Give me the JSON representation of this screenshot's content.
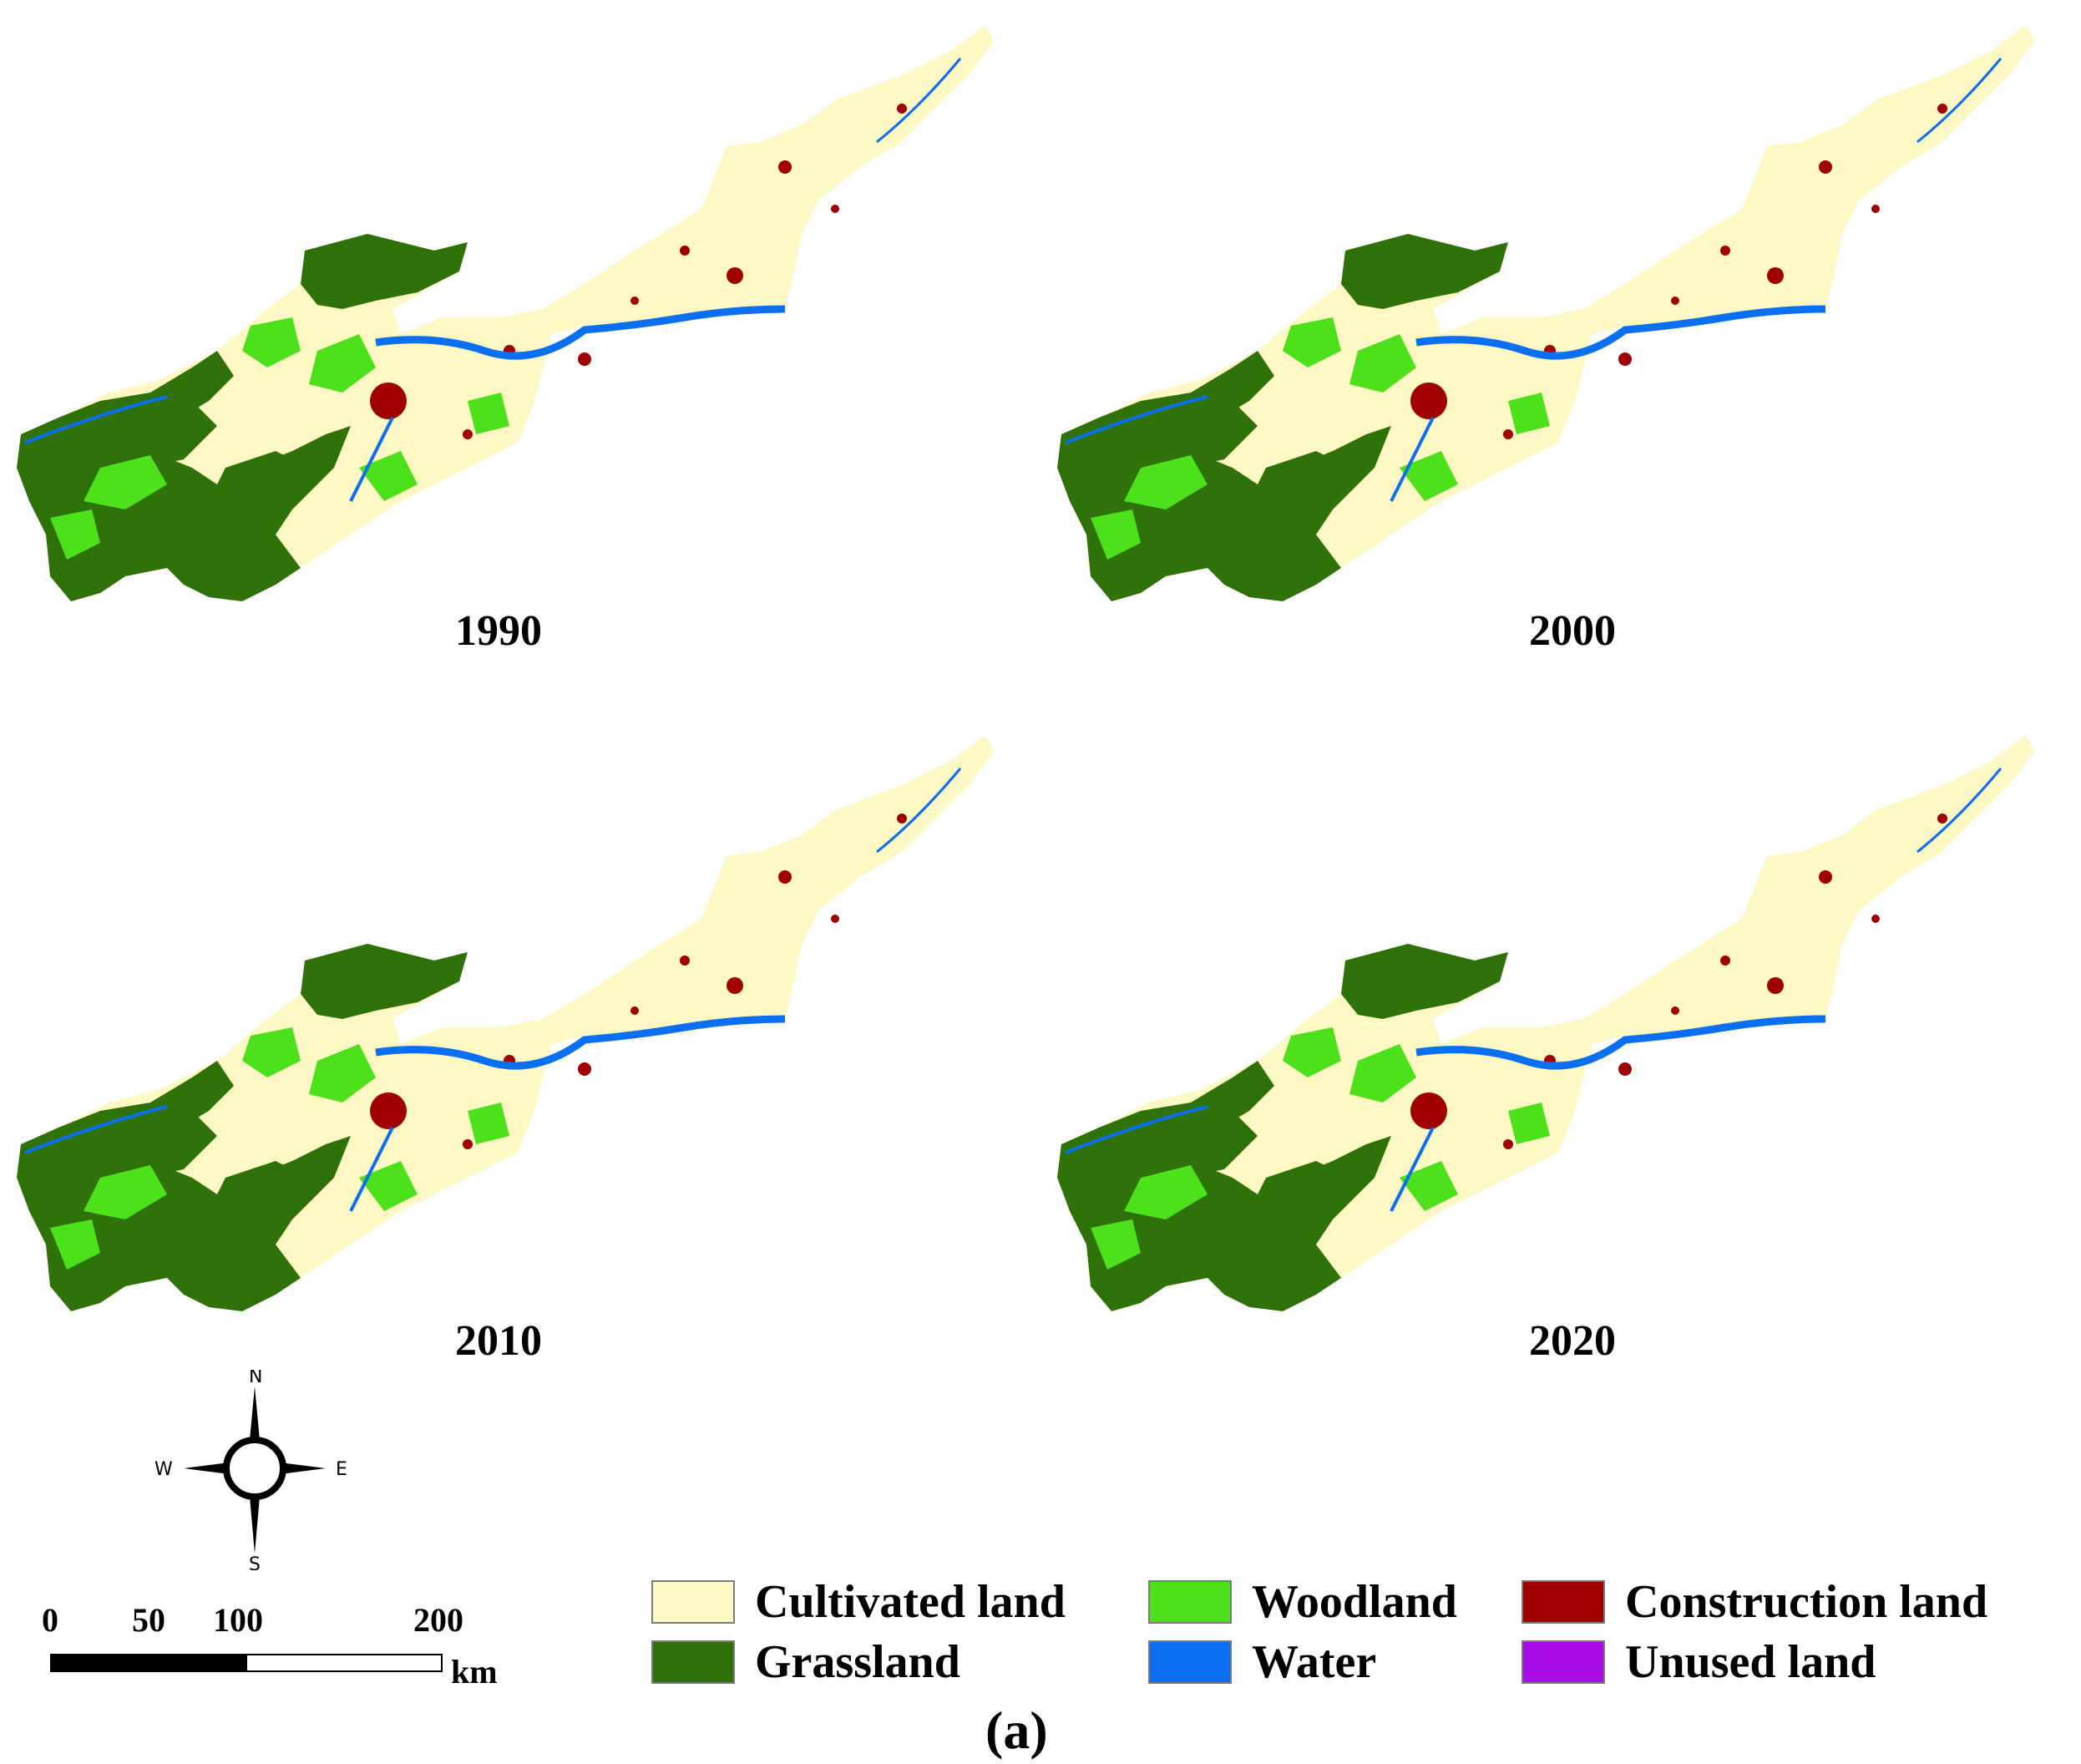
{
  "panels": [
    {
      "year": "1990"
    },
    {
      "year": "2000"
    },
    {
      "year": "2010"
    },
    {
      "year": "2020"
    }
  ],
  "compass": {
    "n": "N",
    "s": "S",
    "e": "E",
    "w": "W"
  },
  "scale": {
    "ticks": [
      "0",
      "50",
      "100",
      "200"
    ],
    "unit": "km"
  },
  "legend": [
    {
      "label": "Cultivated land",
      "color": "#fdf8c4"
    },
    {
      "label": "Woodland",
      "color": "#4ce11a"
    },
    {
      "label": "Construction land",
      "color": "#a00000"
    },
    {
      "label": "Grassland",
      "color": "#2e7209"
    },
    {
      "label": "Water",
      "color": "#0a6ff0"
    },
    {
      "label": "Unused land",
      "color": "#a80ce6"
    }
  ],
  "caption": "(a)"
}
